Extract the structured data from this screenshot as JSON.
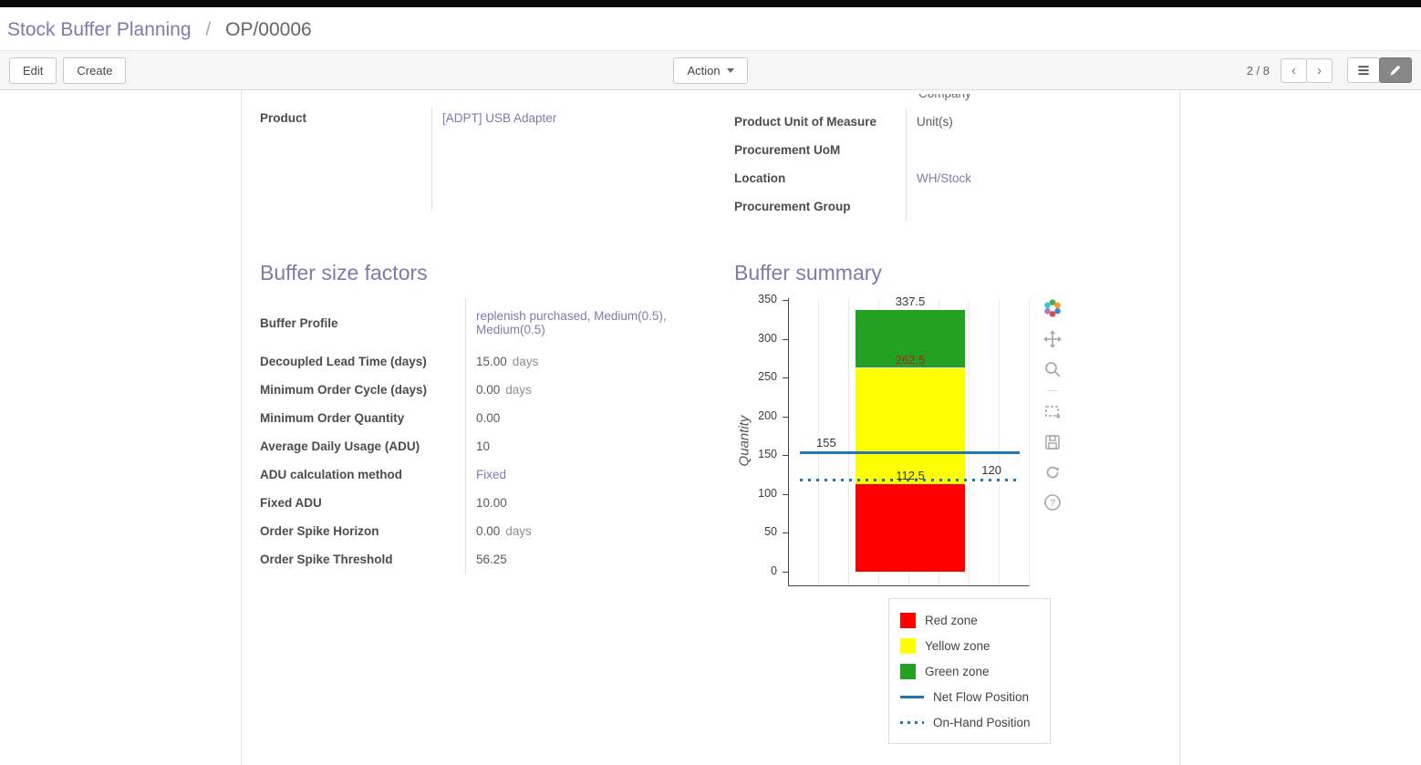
{
  "breadcrumb": {
    "root": "Stock Buffer Planning",
    "separator": "/",
    "current": "OP/00006"
  },
  "toolbar": {
    "edit_label": "Edit",
    "create_label": "Create",
    "action_label": "Action",
    "pager_value": "2 / 8",
    "prev_icon": "‹",
    "next_icon": "›"
  },
  "form": {
    "top_right_partial": "Company",
    "product": {
      "label": "Product",
      "value": "[ADPT] USB Adapter"
    },
    "right_fields": [
      {
        "label": "Product Unit of Measure",
        "value": "Unit(s)"
      },
      {
        "label": "Procurement UoM",
        "value": ""
      },
      {
        "label": "Location",
        "value": "WH/Stock"
      },
      {
        "label": "Procurement Group",
        "value": ""
      }
    ],
    "factors": {
      "title": "Buffer size factors",
      "fields": [
        {
          "label": "Buffer Profile",
          "value": "replenish purchased, Medium(0.5), Medium(0.5)"
        },
        {
          "label": "Decoupled Lead Time (days)",
          "value": "15.00",
          "suffix": "days"
        },
        {
          "label": "Minimum Order Cycle (days)",
          "value": "0.00",
          "suffix": "days"
        },
        {
          "label": "Minimum Order Quantity",
          "value": "0.00"
        },
        {
          "label": "Average Daily Usage (ADU)",
          "value": "10"
        },
        {
          "label": "ADU calculation method",
          "value": "Fixed"
        },
        {
          "label": "Fixed ADU",
          "value": "10.00"
        },
        {
          "label": "Order Spike Horizon",
          "value": "0.00",
          "suffix": "days"
        },
        {
          "label": "Order Spike Threshold",
          "value": "56.25"
        }
      ]
    },
    "summary": {
      "title": "Buffer summary"
    }
  },
  "chart_data": {
    "type": "bar",
    "title": "",
    "ylabel": "Quantity",
    "ylim": [
      0,
      350
    ],
    "yticks": [
      0,
      50,
      100,
      150,
      200,
      250,
      300,
      350
    ],
    "grid": "vertical",
    "zones": [
      {
        "name": "Red zone",
        "from": 0,
        "to": 112.5,
        "color": "#ff0000"
      },
      {
        "name": "Yellow zone",
        "from": 112.5,
        "to": 262.5,
        "color": "#ffff00"
      },
      {
        "name": "Green zone",
        "from": 262.5,
        "to": 337.5,
        "color": "#23a123"
      }
    ],
    "lines": [
      {
        "name": "Net Flow Position",
        "value": 155,
        "style": "solid",
        "color": "#1f77b4"
      },
      {
        "name": "On-Hand Position",
        "value": 120,
        "style": "dotted",
        "color": "#1f77b4"
      }
    ],
    "annotations": [
      {
        "text": "337.5",
        "value": 337.5,
        "align": "center"
      },
      {
        "text": "262.5",
        "value": 262.5,
        "align": "center",
        "color": "#b22222"
      },
      {
        "text": "155",
        "value": 155,
        "align": "left"
      },
      {
        "text": "112.5",
        "value": 112.5,
        "align": "center"
      },
      {
        "text": "120",
        "value": 120,
        "align": "right"
      }
    ],
    "legend_position": "bottom-right",
    "legend_items": [
      {
        "label": "Red zone",
        "swatch": "square",
        "color": "#ff0000"
      },
      {
        "label": "Yellow zone",
        "swatch": "square",
        "color": "#ffff00"
      },
      {
        "label": "Green zone",
        "swatch": "square",
        "color": "#23a123"
      },
      {
        "label": "Net Flow Position",
        "swatch": "line",
        "color": "#1f77b4"
      },
      {
        "label": "On-Hand Position",
        "swatch": "dots",
        "color": "#1f77b4"
      }
    ],
    "modebar_icons": [
      "plotly-logo",
      "pan",
      "zoom",
      "box-select",
      "save",
      "reset",
      "help"
    ]
  }
}
